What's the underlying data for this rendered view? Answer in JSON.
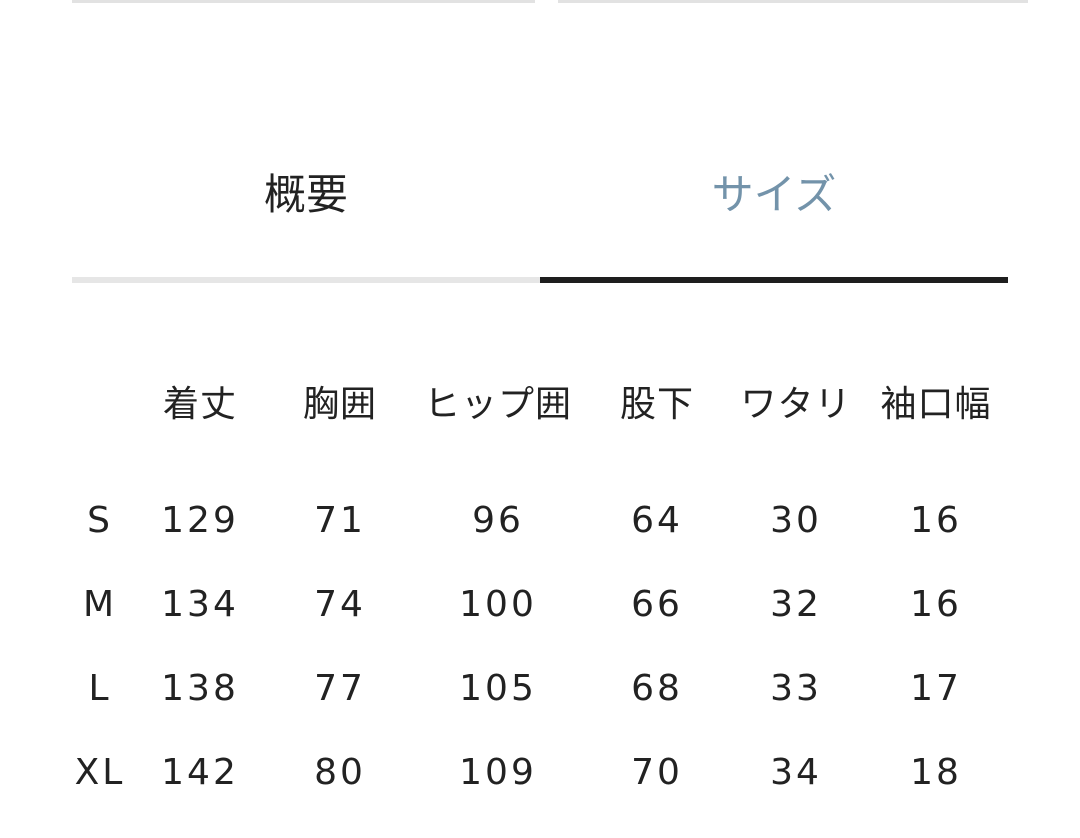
{
  "tabs": [
    {
      "label": "概要",
      "active": false
    },
    {
      "label": "サイズ",
      "active": true
    }
  ],
  "colors": {
    "active_tab_text": "#7393aa",
    "inactive_tab_text": "#222222",
    "active_underline": "#1e1e1e",
    "inactive_underline": "#e6e6e6"
  },
  "size_table": {
    "headers": [
      "",
      "着丈",
      "胸囲",
      "ヒップ囲",
      "股下",
      "ワタリ",
      "袖口幅"
    ],
    "rows": [
      [
        "S",
        "129",
        "71",
        "96",
        "64",
        "30",
        "16"
      ],
      [
        "M",
        "134",
        "74",
        "100",
        "66",
        "32",
        "16"
      ],
      [
        "L",
        "138",
        "77",
        "105",
        "68",
        "33",
        "17"
      ],
      [
        "XL",
        "142",
        "80",
        "109",
        "70",
        "34",
        "18"
      ]
    ]
  }
}
